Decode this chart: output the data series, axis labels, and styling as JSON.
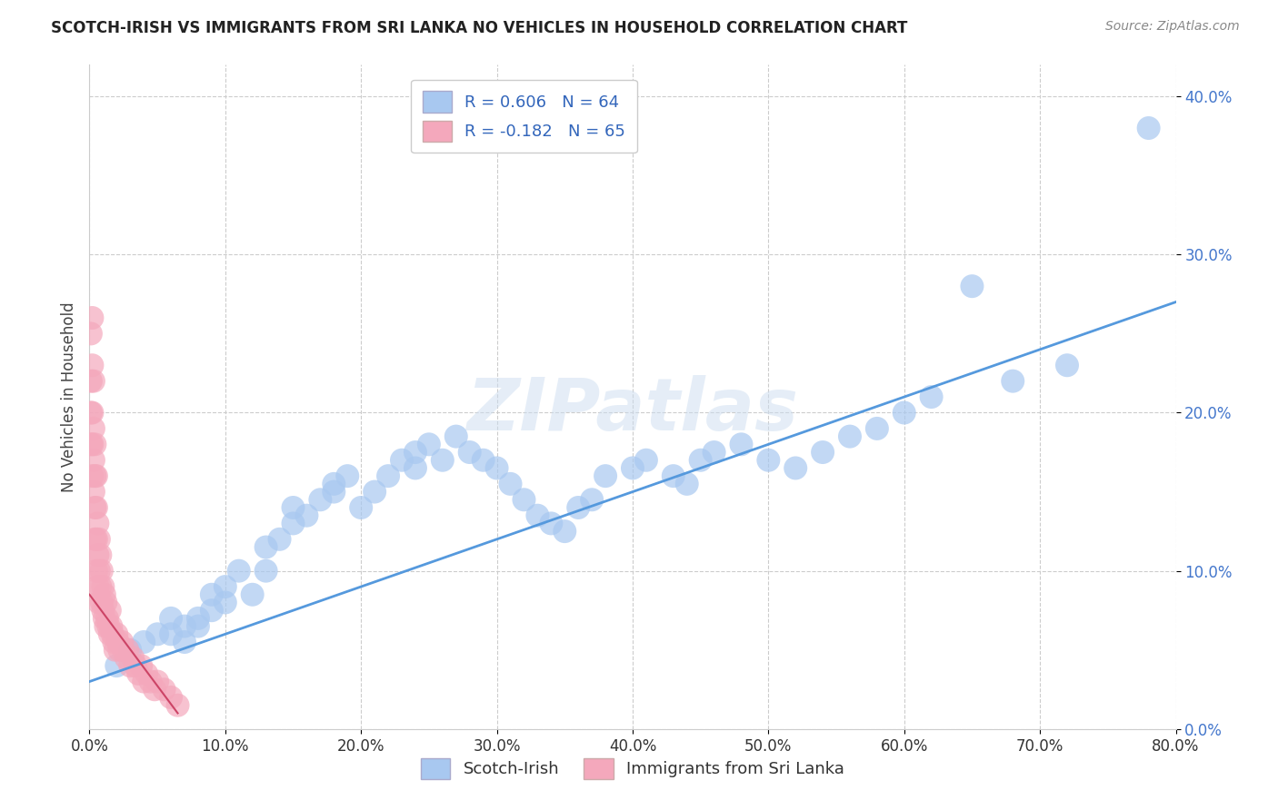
{
  "title": "SCOTCH-IRISH VS IMMIGRANTS FROM SRI LANKA NO VEHICLES IN HOUSEHOLD CORRELATION CHART",
  "source": "Source: ZipAtlas.com",
  "ylabel": "No Vehicles in Household",
  "xlim": [
    0.0,
    0.8
  ],
  "ylim": [
    0.0,
    0.42
  ],
  "yticks": [
    0.0,
    0.1,
    0.2,
    0.3,
    0.4
  ],
  "xticks": [
    0.0,
    0.1,
    0.2,
    0.3,
    0.4,
    0.5,
    0.6,
    0.7,
    0.8
  ],
  "blue_color": "#A8C8F0",
  "pink_color": "#F4A8BC",
  "blue_line_color": "#5599DD",
  "pink_line_color": "#CC4466",
  "r_blue": 0.606,
  "n_blue": 64,
  "r_pink": -0.182,
  "n_pink": 65,
  "legend_label_blue": "Scotch-Irish",
  "legend_label_pink": "Immigrants from Sri Lanka",
  "watermark": "ZIPatlas",
  "blue_scatter_x": [
    0.02,
    0.03,
    0.04,
    0.05,
    0.06,
    0.06,
    0.07,
    0.07,
    0.08,
    0.08,
    0.09,
    0.09,
    0.1,
    0.1,
    0.11,
    0.12,
    0.13,
    0.13,
    0.14,
    0.15,
    0.15,
    0.16,
    0.17,
    0.18,
    0.18,
    0.19,
    0.2,
    0.21,
    0.22,
    0.23,
    0.24,
    0.24,
    0.25,
    0.26,
    0.27,
    0.28,
    0.29,
    0.3,
    0.31,
    0.32,
    0.33,
    0.34,
    0.35,
    0.36,
    0.37,
    0.38,
    0.4,
    0.41,
    0.43,
    0.44,
    0.45,
    0.46,
    0.48,
    0.5,
    0.52,
    0.54,
    0.56,
    0.58,
    0.6,
    0.62,
    0.65,
    0.68,
    0.72,
    0.78
  ],
  "blue_scatter_y": [
    0.04,
    0.05,
    0.055,
    0.06,
    0.07,
    0.06,
    0.065,
    0.055,
    0.07,
    0.065,
    0.075,
    0.085,
    0.08,
    0.09,
    0.1,
    0.085,
    0.1,
    0.115,
    0.12,
    0.13,
    0.14,
    0.135,
    0.145,
    0.15,
    0.155,
    0.16,
    0.14,
    0.15,
    0.16,
    0.17,
    0.165,
    0.175,
    0.18,
    0.17,
    0.185,
    0.175,
    0.17,
    0.165,
    0.155,
    0.145,
    0.135,
    0.13,
    0.125,
    0.14,
    0.145,
    0.16,
    0.165,
    0.17,
    0.16,
    0.155,
    0.17,
    0.175,
    0.18,
    0.17,
    0.165,
    0.175,
    0.185,
    0.19,
    0.2,
    0.21,
    0.28,
    0.22,
    0.23,
    0.38
  ],
  "pink_scatter_x": [
    0.001,
    0.001,
    0.001,
    0.001,
    0.002,
    0.002,
    0.002,
    0.002,
    0.002,
    0.003,
    0.003,
    0.003,
    0.003,
    0.004,
    0.004,
    0.004,
    0.004,
    0.005,
    0.005,
    0.005,
    0.005,
    0.006,
    0.006,
    0.006,
    0.007,
    0.007,
    0.007,
    0.008,
    0.008,
    0.009,
    0.009,
    0.01,
    0.01,
    0.011,
    0.011,
    0.012,
    0.012,
    0.013,
    0.014,
    0.015,
    0.015,
    0.016,
    0.017,
    0.018,
    0.019,
    0.02,
    0.021,
    0.022,
    0.024,
    0.025,
    0.027,
    0.028,
    0.03,
    0.032,
    0.034,
    0.036,
    0.038,
    0.04,
    0.042,
    0.045,
    0.048,
    0.05,
    0.055,
    0.06,
    0.065
  ],
  "pink_scatter_y": [
    0.25,
    0.22,
    0.2,
    0.18,
    0.26,
    0.23,
    0.2,
    0.18,
    0.16,
    0.22,
    0.19,
    0.17,
    0.15,
    0.18,
    0.16,
    0.14,
    0.12,
    0.16,
    0.14,
    0.12,
    0.1,
    0.13,
    0.11,
    0.09,
    0.12,
    0.1,
    0.08,
    0.11,
    0.09,
    0.1,
    0.08,
    0.09,
    0.075,
    0.085,
    0.07,
    0.08,
    0.065,
    0.07,
    0.065,
    0.075,
    0.06,
    0.065,
    0.06,
    0.055,
    0.05,
    0.06,
    0.055,
    0.05,
    0.055,
    0.05,
    0.045,
    0.05,
    0.04,
    0.045,
    0.04,
    0.035,
    0.04,
    0.03,
    0.035,
    0.03,
    0.025,
    0.03,
    0.025,
    0.02,
    0.015
  ],
  "blue_line_x": [
    0.0,
    0.8
  ],
  "blue_line_y": [
    0.03,
    0.27
  ],
  "pink_line_x": [
    0.0,
    0.065
  ],
  "pink_line_y": [
    0.085,
    0.01
  ]
}
